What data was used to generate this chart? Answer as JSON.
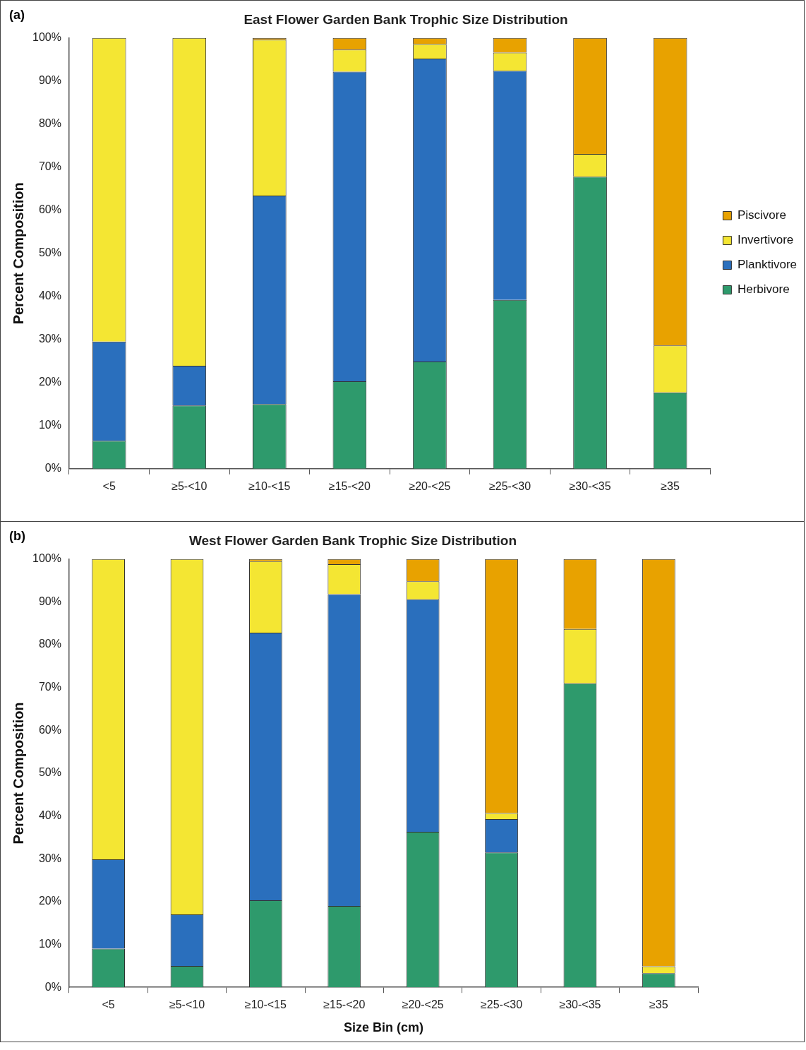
{
  "chart_data": [
    {
      "type": "bar",
      "stacked": true,
      "title": "East Flower Garden Bank Trophic Size Distribution",
      "ylabel": "Percent Composition",
      "annotations": [
        "(a)"
      ],
      "categories": [
        "<5",
        "≥5-<10",
        "≥10-<15",
        "≥15-<20",
        "≥20-<25",
        "≥25-<30",
        "≥30-<35",
        "≥35"
      ],
      "series": [
        {
          "name": "Herbivore",
          "color": "#2e9a6c",
          "values": [
            6.5,
            14.7,
            15,
            20.3,
            24.9,
            39.2,
            67.8,
            17.7
          ]
        },
        {
          "name": "Planktivore",
          "color": "#2a6fbd",
          "values": [
            23,
            9.2,
            48.4,
            71.9,
            70.3,
            53.2,
            0,
            0
          ]
        },
        {
          "name": "Invertivore",
          "color": "#f4e633",
          "values": [
            70.5,
            76.1,
            36.2,
            5.1,
            3.4,
            4.2,
            5.3,
            10.9
          ]
        },
        {
          "name": "Piscivore",
          "color": "#e8a200",
          "values": [
            0,
            0,
            0.4,
            2.7,
            1.4,
            3.4,
            26.9,
            71.4
          ]
        }
      ],
      "ylim": [
        0,
        100
      ],
      "yticks": [
        {
          "value": 0,
          "label": "0%"
        },
        {
          "value": 10,
          "label": "10%"
        },
        {
          "value": 20,
          "label": "20%"
        },
        {
          "value": 30,
          "label": "30%"
        },
        {
          "value": 40,
          "label": "40%"
        },
        {
          "value": 50,
          "label": "50%"
        },
        {
          "value": 60,
          "label": "60%"
        },
        {
          "value": 70,
          "label": "70%"
        },
        {
          "value": 80,
          "label": "80%"
        },
        {
          "value": 90,
          "label": "90%"
        },
        {
          "value": 100,
          "label": "100%"
        }
      ],
      "legend": "right"
    },
    {
      "type": "bar",
      "stacked": true,
      "title": "West Flower Garden Bank Trophic Size Distribution",
      "xlabel": "Size Bin (cm)",
      "ylabel": "Percent Composition",
      "annotations": [
        "(b)"
      ],
      "categories": [
        "<5",
        "≥5-<10",
        "≥10-<15",
        "≥15-<20",
        "≥20-<25",
        "≥25-<30",
        "≥30-<35",
        "≥35"
      ],
      "series": [
        {
          "color": "#2e9a6c",
          "values": [
            9,
            5,
            20.3,
            19,
            36.3,
            31.5,
            71,
            3.3
          ]
        },
        {
          "color": "#2a6fbd",
          "values": [
            20.9,
            12,
            62.5,
            72.8,
            54.3,
            7.8,
            0,
            0
          ]
        },
        {
          "color": "#f4e633",
          "values": [
            70.1,
            83,
            16.7,
            7,
            4.2,
            1.4,
            12.7,
            1.6
          ]
        },
        {
          "color": "#e8a200",
          "values": [
            0,
            0,
            0.5,
            1.2,
            5.2,
            59.3,
            16.3,
            95.1
          ]
        }
      ],
      "ylim": [
        0,
        100
      ],
      "yticks": [
        {
          "value": 0,
          "label": "0%"
        },
        {
          "value": 10,
          "label": "10%"
        },
        {
          "value": 20,
          "label": "20%"
        },
        {
          "value": 30,
          "label": "30%"
        },
        {
          "value": 40,
          "label": "40%"
        },
        {
          "value": 50,
          "label": "50%"
        },
        {
          "value": 60,
          "label": "60%"
        },
        {
          "value": 70,
          "label": "70%"
        },
        {
          "value": 80,
          "label": "80%"
        },
        {
          "value": 90,
          "label": "90%"
        },
        {
          "value": 100,
          "label": "100%"
        }
      ]
    }
  ]
}
